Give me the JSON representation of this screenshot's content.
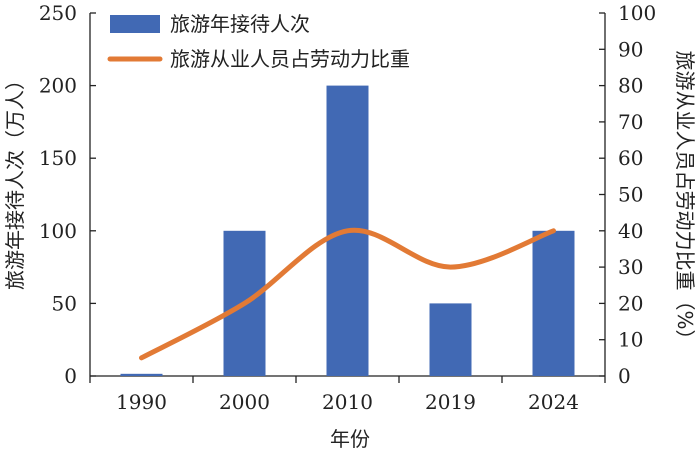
{
  "chart_data": {
    "type": "bar+line",
    "categories": [
      "1990",
      "2000",
      "2010",
      "2019",
      "2024"
    ],
    "series": [
      {
        "name": "旅游年接待人次",
        "type": "bar",
        "axis": "left",
        "color": "#4169b4",
        "values": [
          1.5,
          100,
          200,
          50,
          100
        ]
      },
      {
        "name": "旅游从业人员占劳动力比重",
        "type": "line",
        "axis": "right",
        "color": "#e27a35",
        "values": [
          5,
          20,
          40,
          30,
          40
        ]
      }
    ],
    "xlabel": "年份",
    "ylabel_left": "旅游年接待人次（万人）",
    "ylabel_right": "旅游从业人员占劳动力比重（%）",
    "ylim_left": [
      0,
      250
    ],
    "yticks_left": [
      "0",
      "50",
      "100",
      "150",
      "200",
      "250"
    ],
    "ylim_right": [
      0,
      100
    ],
    "yticks_right": [
      "0",
      "10",
      "20",
      "30",
      "40",
      "50",
      "60",
      "70",
      "80",
      "90",
      "100"
    ],
    "legend_position": "top-left",
    "grid": false
  }
}
